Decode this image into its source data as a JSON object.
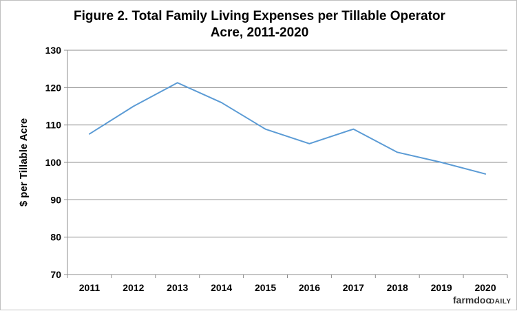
{
  "chart_data": {
    "type": "line",
    "title_lines": [
      "Figure 2.   Total Family Living Expenses per Tillable Operator",
      "Acre, 2011-2020"
    ],
    "xlabel": "",
    "ylabel": "$ per Tillable Acre",
    "ylim": [
      70,
      130
    ],
    "yticks": [
      70,
      80,
      90,
      100,
      110,
      120,
      130
    ],
    "grid": true,
    "categories": [
      "2011",
      "2012",
      "2013",
      "2014",
      "2015",
      "2016",
      "2017",
      "2018",
      "2019",
      "2020"
    ],
    "series": [
      {
        "values": [
          107.6,
          115.0,
          121.3,
          116.0,
          108.9,
          105.0,
          108.9,
          102.7,
          100.0,
          96.9
        ],
        "color": "#5b9bd5"
      }
    ]
  },
  "brand": {
    "name": "farmdoc",
    "suffix": "DAILY"
  }
}
